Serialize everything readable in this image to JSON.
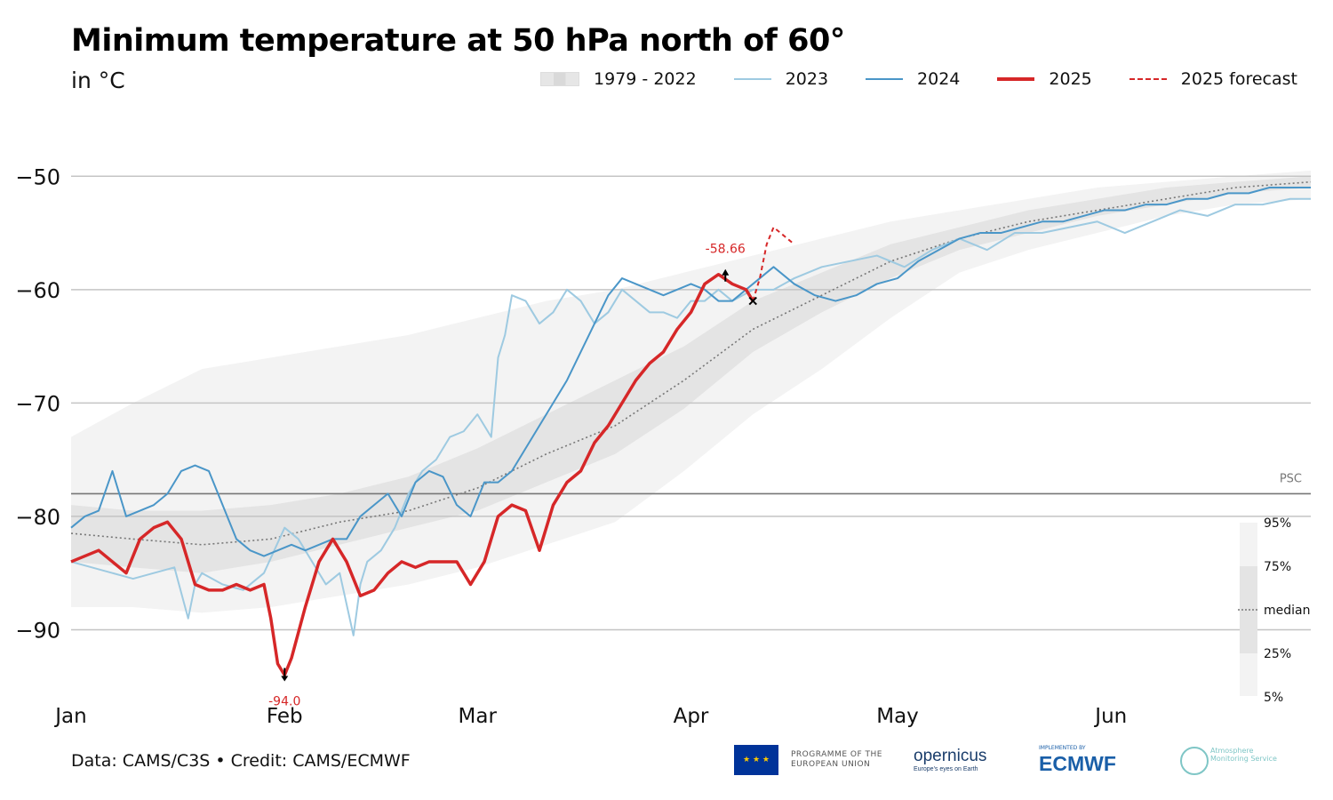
{
  "header": {
    "title": "Minimum temperature at 50 hPa north of 60°",
    "subtitle": "in °C"
  },
  "legend": {
    "items": [
      {
        "label": "1979 - 2022",
        "kind": "band"
      },
      {
        "label": "2023",
        "kind": "line",
        "color": "#9ecae1"
      },
      {
        "label": "2024",
        "kind": "line",
        "color": "#4a96c8"
      },
      {
        "label": "2025",
        "kind": "thick",
        "color": "#d62728"
      },
      {
        "label": "2025 forecast",
        "kind": "dash",
        "color": "#d62728"
      }
    ]
  },
  "footer": {
    "credit": "Data: CAMS/C3S • Credit: CAMS/ECMWF",
    "eu_program": "PROGRAMME OF THE EUROPEAN UNION",
    "copernicus": "opernicus",
    "copernicus_tagline": "Europe's eyes on Earth",
    "implemented_by": "IMPLEMENTED BY",
    "ecmwf": "ECMWF",
    "ams": "Atmosphere Monitoring Service"
  },
  "chart_data": {
    "type": "line",
    "x_unit": "day of year",
    "xticks": [
      {
        "label": "Jan",
        "day": 1
      },
      {
        "label": "Feb",
        "day": 32
      },
      {
        "label": "Mar",
        "day": 60
      },
      {
        "label": "Apr",
        "day": 91
      },
      {
        "label": "May",
        "day": 121
      },
      {
        "label": "Jun",
        "day": 152
      }
    ],
    "yticks": [
      -50,
      -60,
      -70,
      -80,
      -90
    ],
    "ylim": [
      -96,
      -47
    ],
    "xlim": [
      1,
      181
    ],
    "psc": {
      "value": -78,
      "label": "PSC"
    },
    "climatology": {
      "label": "1979 - 2022",
      "x": [
        1,
        10,
        20,
        30,
        40,
        50,
        60,
        70,
        80,
        90,
        100,
        110,
        120,
        130,
        140,
        150,
        160,
        170,
        181
      ],
      "p5": [
        -88,
        -88,
        -88.5,
        -88,
        -87,
        -86,
        -84.5,
        -82.5,
        -80.5,
        -76,
        -71,
        -67,
        -62.5,
        -58.5,
        -56.5,
        -55,
        -53.5,
        -52.5,
        -52
      ],
      "p25": [
        -84,
        -84.5,
        -85,
        -84,
        -82.5,
        -81,
        -79.5,
        -77,
        -74.5,
        -70.5,
        -65.5,
        -62,
        -59,
        -56.5,
        -55,
        -53.5,
        -52.5,
        -51.5,
        -51
      ],
      "median": [
        -81.5,
        -82,
        -82.5,
        -82,
        -80.5,
        -79.5,
        -77.5,
        -74.5,
        -72,
        -68,
        -63.5,
        -60.5,
        -57.5,
        -55.5,
        -54,
        -53,
        -52,
        -51,
        -50.5
      ],
      "p75": [
        -79,
        -79.5,
        -79.5,
        -79,
        -78,
        -76.5,
        -74,
        -71,
        -68,
        -65,
        -61,
        -58.5,
        -56,
        -54.5,
        -53,
        -52,
        -51,
        -50.5,
        -50
      ],
      "p95": [
        -73,
        -70,
        -67,
        -66,
        -65,
        -64,
        -62.5,
        -61,
        -60,
        -58.5,
        -57,
        -55.5,
        -54,
        -53,
        -52,
        -51,
        -50.5,
        -50,
        -49.5
      ]
    },
    "series": [
      {
        "name": "2023",
        "x": [
          1,
          4,
          7,
          10,
          13,
          16,
          18,
          19,
          20,
          23,
          26,
          29,
          32,
          34,
          36,
          38,
          40,
          42,
          43,
          44,
          46,
          48,
          50,
          52,
          54,
          56,
          58,
          60,
          62,
          63,
          64,
          65,
          67,
          69,
          71,
          73,
          75,
          77,
          79,
          81,
          83,
          85,
          87,
          89,
          91,
          93,
          95,
          97,
          100,
          103,
          106,
          110,
          114,
          118,
          122,
          126,
          130,
          134,
          138,
          142,
          146,
          150,
          154,
          158,
          162,
          166,
          170,
          174,
          178,
          181
        ],
        "y": [
          -84,
          -84.5,
          -85,
          -85.5,
          -85,
          -84.5,
          -89,
          -86,
          -85,
          -86,
          -86.5,
          -85,
          -81,
          -82,
          -84,
          -86,
          -85,
          -90.5,
          -86,
          -84,
          -83,
          -81,
          -78,
          -76,
          -75,
          -73,
          -72.5,
          -71,
          -73,
          -66,
          -64,
          -60.5,
          -61,
          -63,
          -62,
          -60,
          -61,
          -63,
          -62,
          -60,
          -61,
          -62,
          -62,
          -62.5,
          -61,
          -61,
          -60,
          -61,
          -60,
          -60,
          -59,
          -58,
          -57.5,
          -57,
          -58,
          -56.5,
          -55.5,
          -56.5,
          -55,
          -55,
          -54.5,
          -54,
          -55,
          -54,
          -53,
          -53.5,
          -52.5,
          -52.5,
          -52,
          -52
        ]
      },
      {
        "name": "2024",
        "x": [
          1,
          3,
          5,
          7,
          9,
          11,
          13,
          15,
          17,
          19,
          21,
          23,
          25,
          27,
          29,
          31,
          33,
          35,
          37,
          39,
          41,
          43,
          45,
          47,
          49,
          51,
          53,
          55,
          57,
          59,
          61,
          63,
          65,
          67,
          69,
          71,
          73,
          75,
          77,
          79,
          81,
          83,
          85,
          87,
          89,
          91,
          93,
          95,
          97,
          99,
          101,
          103,
          106,
          109,
          112,
          115,
          118,
          121,
          124,
          127,
          130,
          133,
          136,
          139,
          142,
          145,
          148,
          151,
          154,
          157,
          160,
          163,
          166,
          169,
          172,
          175,
          178,
          181
        ],
        "y": [
          -81,
          -80,
          -79.5,
          -76,
          -80,
          -79.5,
          -79,
          -78,
          -76,
          -75.5,
          -76,
          -79,
          -82,
          -83,
          -83.5,
          -83,
          -82.5,
          -83,
          -82.5,
          -82,
          -82,
          -80,
          -79,
          -78,
          -80,
          -77,
          -76,
          -76.5,
          -79,
          -80,
          -77,
          -77,
          -76,
          -74,
          -72,
          -70,
          -68,
          -65.5,
          -63,
          -60.5,
          -59,
          -59.5,
          -60,
          -60.5,
          -60,
          -59.5,
          -60,
          -61,
          -61,
          -60,
          -59,
          -58,
          -59.5,
          -60.5,
          -61,
          -60.5,
          -59.5,
          -59,
          -57.5,
          -56.5,
          -55.5,
          -55,
          -55,
          -54.5,
          -54,
          -54,
          -53.5,
          -53,
          -53,
          -52.5,
          -52.5,
          -52,
          -52,
          -51.5,
          -51.5,
          -51,
          -51,
          -51
        ]
      },
      {
        "name": "2025",
        "x": [
          1,
          3,
          5,
          7,
          9,
          11,
          13,
          15,
          17,
          19,
          21,
          23,
          25,
          27,
          29,
          30,
          31,
          32,
          33,
          35,
          37,
          39,
          41,
          43,
          45,
          47,
          49,
          51,
          53,
          55,
          57,
          59,
          61,
          63,
          65,
          67,
          69,
          71,
          73,
          75,
          77,
          79,
          81,
          83,
          85,
          87,
          89,
          91,
          93,
          95,
          97,
          99,
          100
        ],
        "y": [
          -84,
          -83.5,
          -83,
          -84,
          -85,
          -82,
          -81,
          -80.5,
          -82,
          -86,
          -86.5,
          -86.5,
          -86,
          -86.5,
          -86,
          -89,
          -93,
          -94,
          -92.5,
          -88,
          -84,
          -82,
          -84,
          -87,
          -86.5,
          -85,
          -84,
          -84.5,
          -84,
          -84,
          -84,
          -86,
          -84,
          -80,
          -79,
          -79.5,
          -83,
          -79,
          -77,
          -76,
          -73.5,
          -72,
          -70,
          -68,
          -66.5,
          -65.5,
          -63.5,
          -62,
          -59.5,
          -58.66,
          -59.5,
          -60,
          -61
        ]
      },
      {
        "name": "2025 forecast",
        "x": [
          100,
          101,
          102,
          103,
          104,
          105,
          106
        ],
        "y": [
          -61,
          -59,
          -56,
          -54.5,
          -55,
          -55.5,
          -56
        ]
      }
    ],
    "annotations": [
      {
        "text": "-94.0",
        "x": 32,
        "y": -94
      },
      {
        "text": "-58.66",
        "x": 96,
        "y": -58.66
      }
    ],
    "percentile_key": [
      "95%",
      "75%",
      "median",
      "25%",
      "5%"
    ]
  }
}
